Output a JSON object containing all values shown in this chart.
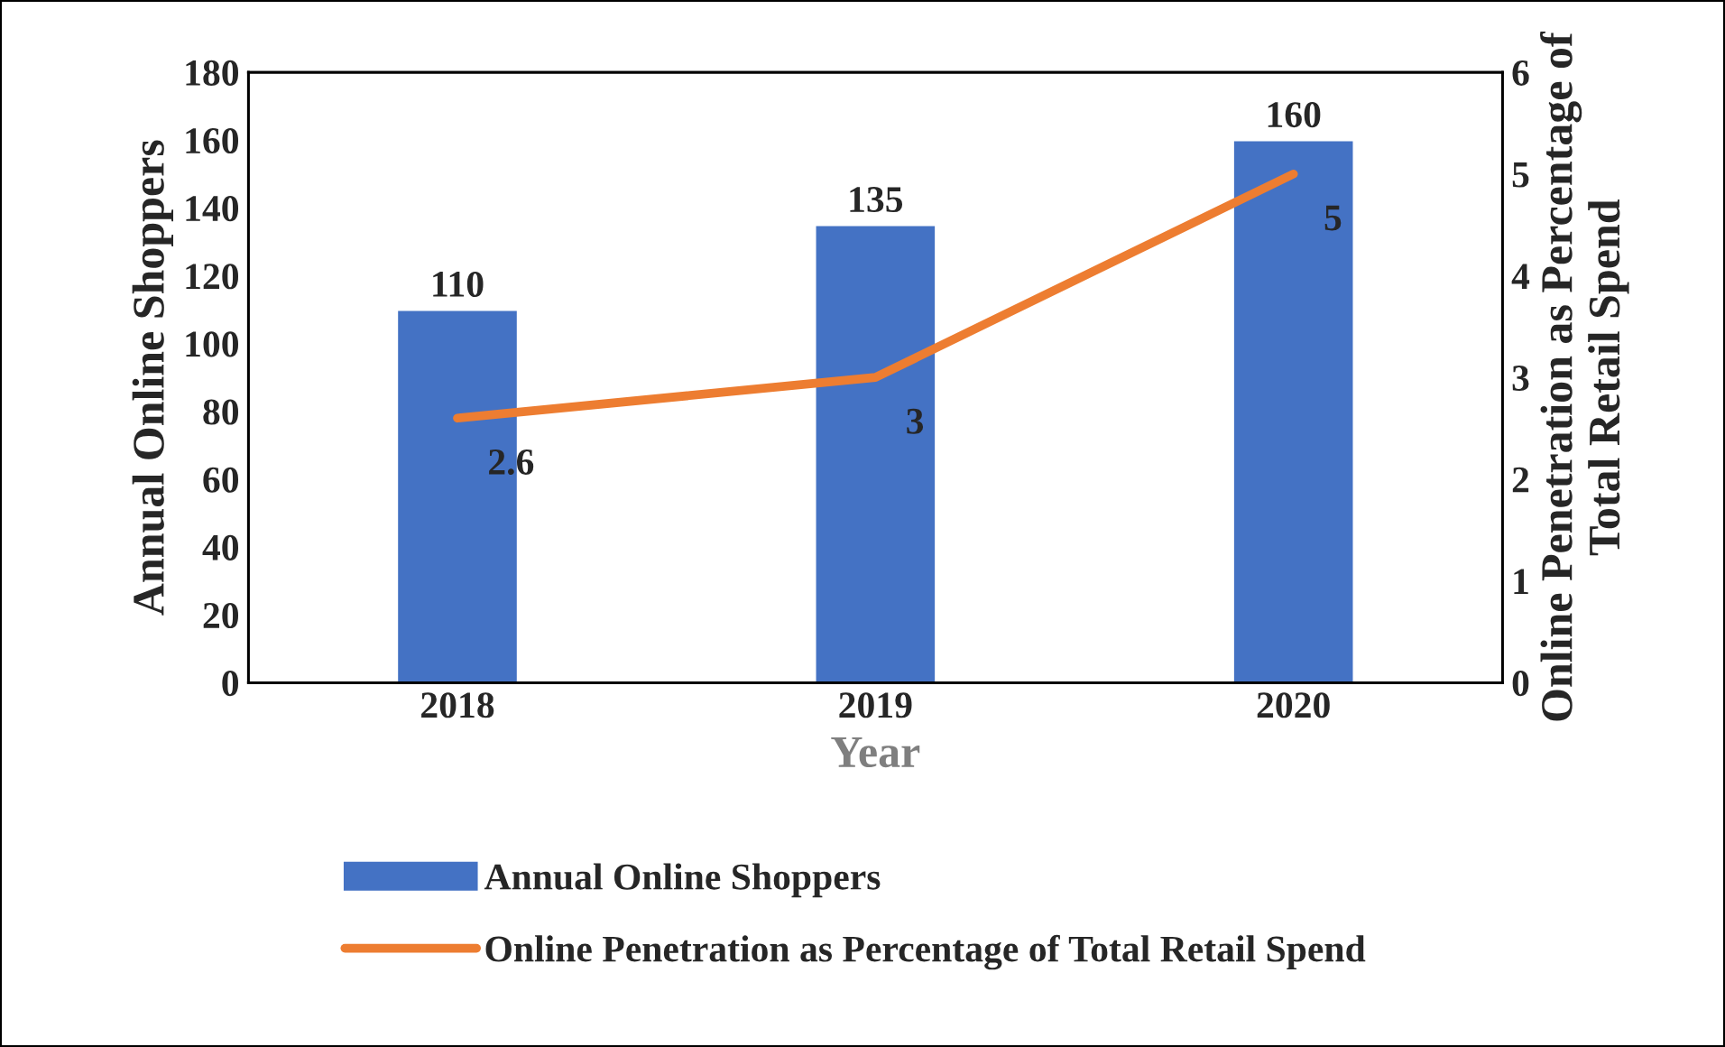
{
  "chart_data": {
    "type": "bar",
    "xlabel": "Year",
    "ylabel": "Annual Online Shoppers",
    "y2label": "Online Penetration as Percentage of Total Retail Spend",
    "categories": [
      "2018",
      "2019",
      "2020"
    ],
    "series": [
      {
        "name": "Annual Online Shoppers",
        "color": "#4472c4",
        "values": [
          110,
          135,
          160
        ]
      },
      {
        "name": "Online Penetration as Percentage of Total Retail Spend",
        "type": "line",
        "axis": "y2",
        "color": "#ed7d31",
        "values": [
          2.6,
          3,
          5
        ]
      }
    ],
    "ylim": [
      0,
      180
    ],
    "yticks": [
      0,
      20,
      40,
      60,
      80,
      100,
      120,
      140,
      160,
      180
    ],
    "y2lim": [
      0,
      6
    ],
    "y2ticks": [
      0,
      1,
      2,
      3,
      4,
      5,
      6
    ],
    "data_labels": true,
    "grid": false,
    "legend": "bottom",
    "marker": "none"
  }
}
